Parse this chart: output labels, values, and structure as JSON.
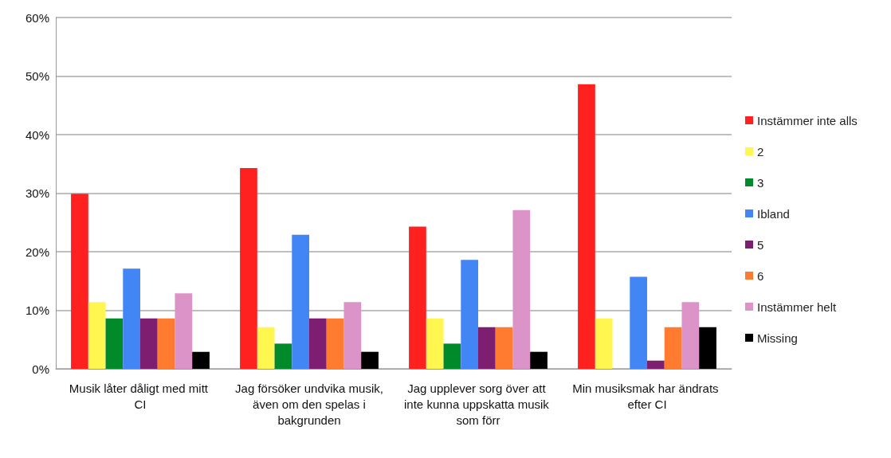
{
  "chart_data": {
    "type": "bar",
    "categories": [
      "Musik låter dåligt med mitt CI",
      "Jag försöker undvika musik, även om den spelas i bakgrunden",
      "Jag upplever sorg över att inte kunna uppskatta musik som förr",
      "Min musiksmak har ändrats efter CI"
    ],
    "series": [
      {
        "name": "Instämmer inte alls",
        "color": "#ff2020",
        "values": [
          29.9,
          34.3,
          24.3,
          48.6
        ]
      },
      {
        "name": "2",
        "color": "#fff64f",
        "values": [
          11.4,
          7.1,
          8.6,
          8.6
        ]
      },
      {
        "name": "3",
        "color": "#008a2a",
        "values": [
          8.6,
          4.3,
          4.3,
          0
        ]
      },
      {
        "name": "Ibland",
        "color": "#4285f4",
        "values": [
          17.1,
          22.9,
          18.6,
          15.7
        ]
      },
      {
        "name": "5",
        "color": "#7e1e70",
        "values": [
          8.6,
          8.6,
          7.1,
          1.4
        ]
      },
      {
        "name": "6",
        "color": "#ff7b30",
        "values": [
          8.6,
          8.6,
          7.1,
          7.1
        ]
      },
      {
        "name": "Instämmer helt",
        "color": "#dc94c8",
        "values": [
          12.9,
          11.4,
          27.1,
          11.4
        ]
      },
      {
        "name": "Missing",
        "color": "#000000",
        "values": [
          2.9,
          2.9,
          2.9,
          7.1
        ]
      }
    ],
    "ylim": [
      0,
      60
    ],
    "yticks": [
      {
        "value": 0,
        "label": "0%"
      },
      {
        "value": 10,
        "label": "10%"
      },
      {
        "value": 20,
        "label": "20%"
      },
      {
        "value": 30,
        "label": "30%"
      },
      {
        "value": 40,
        "label": "40%"
      },
      {
        "value": 50,
        "label": "50%"
      },
      {
        "value": 60,
        "label": "60%"
      }
    ],
    "grid": "y",
    "legend": "right"
  }
}
